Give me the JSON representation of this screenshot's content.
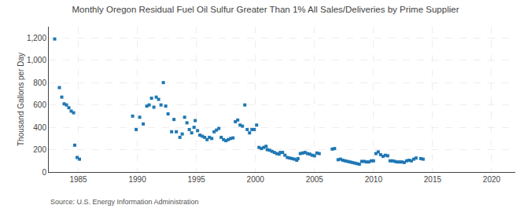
{
  "chart_data": {
    "type": "scatter",
    "title": "Monthly Oregon Residual Fuel Oil Sulfur Greater Than 1% All Sales/Deliveries by Prime Supplier",
    "ylabel": "Thousand Gallons per Day",
    "source": "Source: U.S. Energy Information Administration",
    "marker": "square",
    "grid": true,
    "xlim": [
      1982.5,
      2022
    ],
    "ylim": [
      0,
      1300
    ],
    "xticks": [
      1985,
      1990,
      1995,
      2000,
      2005,
      2010,
      2015,
      2020
    ],
    "yticks": [
      0,
      200,
      400,
      600,
      800,
      {
        "value": 1000,
        "label": "1,000"
      },
      {
        "value": 1200,
        "label": "1,200"
      }
    ],
    "x": [
      1983.0,
      1983.4,
      1983.6,
      1983.8,
      1984.0,
      1984.2,
      1984.4,
      1984.6,
      1984.7,
      1984.9,
      1985.1,
      1989.6,
      1989.9,
      1990.2,
      1990.5,
      1990.8,
      1991.0,
      1991.2,
      1991.4,
      1991.6,
      1991.8,
      1992.0,
      1992.2,
      1992.4,
      1992.6,
      1992.9,
      1993.1,
      1993.3,
      1993.6,
      1993.8,
      1994.0,
      1994.2,
      1994.4,
      1994.6,
      1994.8,
      1994.9,
      1995.1,
      1995.3,
      1995.5,
      1995.7,
      1995.9,
      1996.1,
      1996.3,
      1996.5,
      1996.7,
      1996.9,
      1997.1,
      1997.3,
      1997.5,
      1997.7,
      1997.9,
      1998.1,
      1998.3,
      1998.5,
      1998.7,
      1998.9,
      1999.1,
      1999.3,
      1999.5,
      1999.7,
      1999.9,
      2000.1,
      2000.3,
      2000.5,
      2000.7,
      2000.9,
      2001.0,
      2001.2,
      2001.4,
      2001.6,
      2001.8,
      2002.0,
      2002.1,
      2002.3,
      2002.5,
      2002.7,
      2002.9,
      2003.1,
      2003.3,
      2003.5,
      2003.6,
      2003.8,
      2004.0,
      2004.2,
      2004.4,
      2004.6,
      2004.8,
      2005.0,
      2005.2,
      2005.4,
      2006.5,
      2006.7,
      2007.0,
      2007.2,
      2007.4,
      2007.6,
      2007.8,
      2008.0,
      2008.2,
      2008.4,
      2008.6,
      2008.8,
      2009.0,
      2009.2,
      2009.4,
      2009.6,
      2009.8,
      2010.0,
      2010.2,
      2010.4,
      2010.6,
      2010.8,
      2011.0,
      2011.2,
      2011.4,
      2011.6,
      2011.8,
      2012.0,
      2012.2,
      2012.4,
      2012.6,
      2012.8,
      2013.0,
      2013.2,
      2013.4,
      2013.6,
      2014.0,
      2014.2
    ],
    "values": [
      1190,
      755,
      670,
      610,
      600,
      575,
      545,
      530,
      240,
      130,
      115,
      500,
      380,
      490,
      430,
      590,
      600,
      660,
      580,
      670,
      650,
      600,
      800,
      590,
      520,
      360,
      470,
      360,
      310,
      340,
      490,
      440,
      380,
      350,
      400,
      460,
      370,
      330,
      320,
      310,
      290,
      310,
      300,
      360,
      375,
      390,
      310,
      290,
      280,
      290,
      300,
      305,
      450,
      465,
      420,
      410,
      600,
      380,
      350,
      380,
      380,
      420,
      220,
      210,
      220,
      230,
      200,
      195,
      185,
      175,
      165,
      160,
      175,
      175,
      150,
      130,
      125,
      120,
      115,
      105,
      120,
      165,
      170,
      175,
      165,
      160,
      150,
      145,
      170,
      165,
      205,
      210,
      110,
      115,
      105,
      100,
      95,
      90,
      85,
      80,
      75,
      70,
      95,
      95,
      90,
      90,
      100,
      100,
      165,
      180,
      155,
      140,
      150,
      145,
      100,
      100,
      95,
      90,
      90,
      90,
      85,
      100,
      105,
      100,
      115,
      125,
      120,
      115
    ]
  }
}
